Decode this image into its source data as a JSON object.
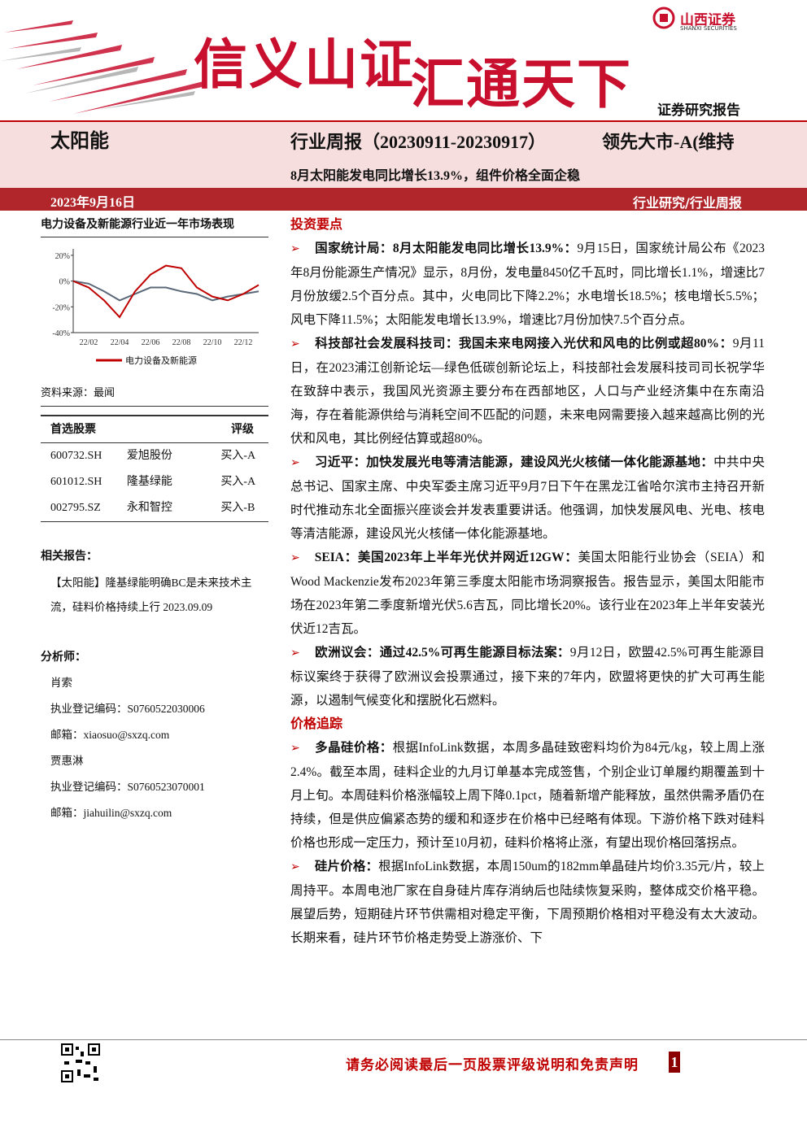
{
  "header": {
    "logo": "山西证券",
    "logo_en": "SHANXI SECURITIES",
    "slogan_left": "信义山证",
    "slogan_right": "汇通天下",
    "report_type": "证券研究报告"
  },
  "title_block": {
    "sector": "太阳能",
    "report": "行业周报（20230911-20230917）",
    "rating": "领先大市-A(维持",
    "headline": "8月太阳能发电同比增长13.9%，组件价格全面企稳",
    "date": "2023年9月16日",
    "category": "行业研究/行业周报"
  },
  "sidebar": {
    "chart_title": "电力设备及新能源行业近一年市场表现",
    "source": "资料来源：最闻",
    "stocks": {
      "header": [
        "首选股票",
        "评级"
      ],
      "rows": [
        [
          "600732.SH",
          "爱旭股份",
          "买入-A"
        ],
        [
          "601012.SH",
          "隆基绿能",
          "买入-A"
        ],
        [
          "002795.SZ",
          "永和智控",
          "买入-B"
        ]
      ]
    },
    "related": {
      "title": "相关报告：",
      "items": [
        "【太阳能】隆基绿能明确BC是未来技术主流，硅料价格持续上行 2023.09.09"
      ]
    },
    "analysts": {
      "title": "分析师：",
      "people": [
        {
          "name": "肖索",
          "license": "执业登记编码：S0760522030006",
          "email": "邮箱：xiaosuo@sxzq.com"
        },
        {
          "name": "贾惠淋",
          "license": "执业登记编码：S0760523070001",
          "email": "邮箱：jiahuilin@sxzq.com"
        }
      ]
    }
  },
  "chart_data": {
    "type": "line",
    "categories": [
      null,
      "22/02",
      null,
      "22/04",
      null,
      "22/06",
      null,
      "22/08",
      null,
      "22/10",
      null,
      "22/12",
      null
    ],
    "series": [
      {
        "name": "电力设备及新能源",
        "color": "#c00000",
        "values": [
          0,
          -5,
          -15,
          -28,
          -8,
          5,
          12,
          10,
          -5,
          -12,
          -15,
          -10,
          -3
        ]
      },
      {
        "color": "#5a6878",
        "values": [
          0,
          -2,
          -8,
          -15,
          -10,
          -5,
          -5,
          -8,
          -10,
          -15,
          -12,
          -10,
          -8
        ]
      }
    ],
    "ylim": [
      -40,
      25
    ],
    "yticks": [
      {
        "value": 20,
        "label": "20%"
      },
      {
        "value": 0,
        "label": "0%"
      },
      {
        "value": -20,
        "label": "-20%"
      },
      {
        "value": -40,
        "label": "-40%"
      }
    ],
    "legend": "bottom"
  },
  "main": {
    "sections": [
      {
        "heading": "投资要点",
        "items": [
          {
            "lead": "国家统计局：8月太阳能发电同比增长13.9%：",
            "text": "9月15日，国家统计局公布《2023年8月份能源生产情况》显示，8月份，发电量8450亿千瓦时，同比增长1.1%，增速比7月份放缓2.5个百分点。其中，火电同比下降2.2%；水电增长18.5%；核电增长5.5%；风电下降11.5%；太阳能发电增长13.9%，增速比7月份加快7.5个百分点。"
          },
          {
            "lead": "科技部社会发展科技司：我国未来电网接入光伏和风电的比例或超80%：",
            "text": "9月11日，在2023浦江创新论坛—绿色低碳创新论坛上，科技部社会发展科技司司长祝学华在致辞中表示，我国风光资源主要分布在西部地区，人口与产业经济集中在东南沿海，存在着能源供给与消耗空间不匹配的问题，未来电网需要接入越来越高比例的光伏和风电，其比例经估算或超80%。"
          },
          {
            "lead": "习近平：加快发展光电等清洁能源，建设风光火核储一体化能源基地：",
            "text": "中共中央总书记、国家主席、中央军委主席习近平9月7日下午在黑龙江省哈尔滨市主持召开新时代推动东北全面振兴座谈会并发表重要讲话。他强调，加快发展风电、光电、核电等清洁能源，建设风光火核储一体化能源基地。"
          },
          {
            "lead": "SEIA：美国2023年上半年光伏并网近12GW：",
            "text": "美国太阳能行业协会（SEIA）和Wood Mackenzie发布2023年第三季度太阳能市场洞察报告。报告显示，美国太阳能市场在2023年第二季度新增光伏5.6吉瓦，同比增长20%。该行业在2023年上半年安装光伏近12吉瓦。"
          },
          {
            "lead": "欧洲议会：通过42.5%可再生能源目标法案：",
            "text": "9月12日，欧盟42.5%可再生能源目标议案终于获得了欧洲议会投票通过，接下来的7年内，欧盟将更快的扩大可再生能源，以遏制气候变化和摆脱化石燃料。"
          }
        ]
      },
      {
        "heading": "价格追踪",
        "items": [
          {
            "lead": "多晶硅价格：",
            "text": "根据InfoLink数据，本周多晶硅致密料均价为84元/kg，较上周上涨2.4%。截至本周，硅料企业的九月订单基本完成签售，个别企业订单履约期覆盖到十月上旬。本周硅料价格涨幅较上周下降0.1pct，随着新增产能释放，虽然供需矛盾仍在持续，但是供应偏紧态势的缓和和逐步在价格中已经略有体现。下游价格下跌对硅料价格也形成一定压力，预计至10月初，硅料价格将止涨，有望出现价格回落拐点。"
          },
          {
            "lead": "硅片价格：",
            "text": "根据InfoLink数据，本周150um的182mm单晶硅片均价3.35元/片，较上周持平。本周电池厂家在自身硅片库存消纳后也陆续恢复采购，整体成交价格平稳。展望后势，短期硅片环节供需相对稳定平衡，下周预期价格相对平稳没有太大波动。长期来看，硅片环节价格走势受上游涨价、下"
          }
        ]
      }
    ]
  },
  "footer": {
    "disclaimer": "请务必阅读最后一页股票评级说明和免责声明",
    "page": 1
  }
}
